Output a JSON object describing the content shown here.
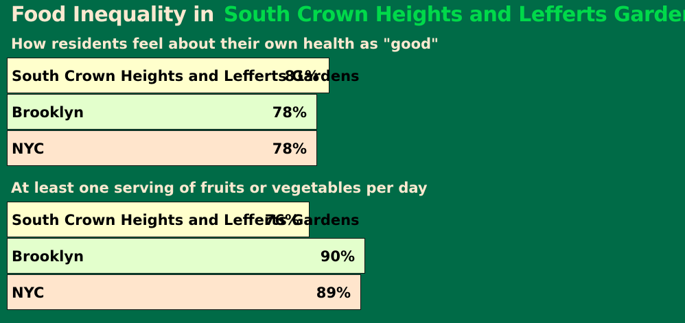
{
  "header": {
    "title_lead": "Food Inequality in",
    "title_place": "South Crown Heights and Lefferts Gardens"
  },
  "colors": {
    "background": "#006B47",
    "title_text": "#FBE9D0",
    "title_accent": "#00D94A",
    "bar_neighborhood": "#FFFFCC",
    "bar_borough": "#E3FFCC",
    "bar_city": "#FFE5CC"
  },
  "chart_data": [
    {
      "type": "bar",
      "orientation": "horizontal",
      "title": "How residents feel about their own health as \"good\"",
      "categories": [
        "South Crown Heights and Lefferts Gardens",
        "Brooklyn",
        "NYC"
      ],
      "values": [
        81,
        78,
        78
      ],
      "value_labels": [
        "81%",
        "78%",
        "78%"
      ],
      "unit": "%"
    },
    {
      "type": "bar",
      "orientation": "horizontal",
      "title": "At least one serving of fruits or vegetables per day",
      "categories": [
        "South Crown Heights and Lefferts Gardens",
        "Brooklyn",
        "NYC"
      ],
      "values": [
        76,
        90,
        89
      ],
      "value_labels": [
        "76%",
        "90%",
        "89%"
      ],
      "unit": "%"
    }
  ]
}
